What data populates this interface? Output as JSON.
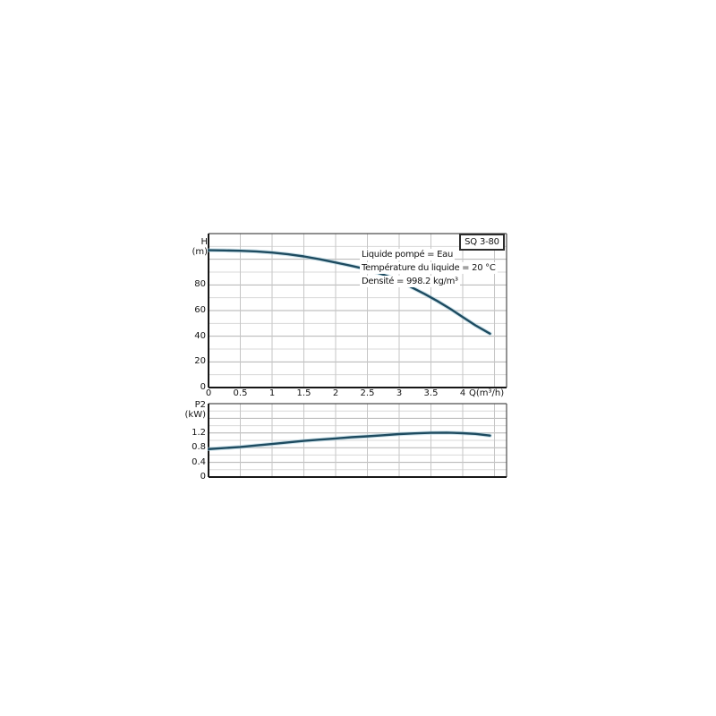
{
  "pump_model": "SQ 3-80",
  "annotations": [
    "Liquide pompé = Eau",
    "Température du liquide = 20 °C",
    "Densité = 998.2 kg/m³"
  ],
  "labels": {
    "top_axis_line1": "H",
    "top_axis_line2": "(m)",
    "bottom_axis_line1": "P2",
    "bottom_axis_line2": "(kW)",
    "x_unit": "Q(m³/h)"
  },
  "colors": {
    "curve": "#1d4b60",
    "curve_halo": "#a9cedd",
    "grid_minor": "#d8d8d8",
    "grid_major": "#b2b2b2",
    "grid_vertical": "#c6c6c6",
    "border_light": "#4d4d4d",
    "border_dark": "#161616",
    "text": "#141414",
    "background": "#ffffff"
  },
  "chart_data": [
    {
      "type": "line",
      "title": "SQ 3-80",
      "xlabel": "Q(m³/h)",
      "ylabel": "H (m)",
      "xlim": [
        0,
        4.69
      ],
      "ylim": [
        0,
        120
      ],
      "grid": true,
      "x_grid_step": 0.5,
      "y_grid_step": 10,
      "y_major_step": 20,
      "x_tick_values": [
        0,
        0.5,
        1,
        1.5,
        2,
        2.5,
        3,
        3.5,
        4
      ],
      "x_tick_labels": [
        "0",
        "0.5",
        "1",
        "1.5",
        "2",
        "2.5",
        "3",
        "3.5",
        "4"
      ],
      "y_tick_values": [
        0,
        20,
        40,
        60,
        80
      ],
      "y_tick_labels": [
        "0",
        "20",
        "40",
        "60",
        "80"
      ],
      "legend_position": "top-right-box",
      "annotations": [
        "Liquide pompé = Eau",
        "Température du liquide = 20 °C",
        "Densité = 998.2 kg/m³"
      ],
      "series": [
        {
          "name": "H",
          "x": [
            0,
            0.25,
            0.5,
            0.75,
            1.0,
            1.25,
            1.5,
            1.75,
            2.0,
            2.25,
            2.5,
            2.75,
            3.0,
            3.2,
            3.4,
            3.6,
            3.8,
            4.0,
            4.2,
            4.43
          ],
          "y": [
            107,
            106.9,
            106.6,
            106.1,
            105.2,
            103.9,
            102.2,
            100,
            97.5,
            94.8,
            92,
            88,
            83.5,
            78,
            73,
            67.5,
            61.5,
            55,
            48.5,
            42
          ]
        }
      ]
    },
    {
      "type": "line",
      "title": "",
      "xlabel": "",
      "ylabel": "P2 (kW)",
      "xlim": [
        0,
        4.69
      ],
      "ylim": [
        0,
        2
      ],
      "grid": true,
      "x_grid_step": 0.5,
      "y_grid_step": 0.2,
      "y_major_step": 0.4,
      "x_tick_values": [],
      "x_tick_labels": [],
      "y_tick_values": [
        0,
        0.4,
        0.8,
        1.2
      ],
      "y_tick_labels": [
        "0",
        "0.4",
        "0.8",
        "1.2"
      ],
      "series": [
        {
          "name": "P2",
          "x": [
            0,
            0.25,
            0.5,
            0.75,
            1.0,
            1.25,
            1.5,
            1.75,
            2.0,
            2.25,
            2.5,
            2.75,
            3.0,
            3.25,
            3.5,
            3.75,
            4.0,
            4.2,
            4.43
          ],
          "y": [
            0.76,
            0.79,
            0.82,
            0.86,
            0.9,
            0.945,
            0.985,
            1.02,
            1.05,
            1.085,
            1.11,
            1.14,
            1.17,
            1.19,
            1.205,
            1.21,
            1.195,
            1.175,
            1.13
          ]
        }
      ]
    }
  ]
}
